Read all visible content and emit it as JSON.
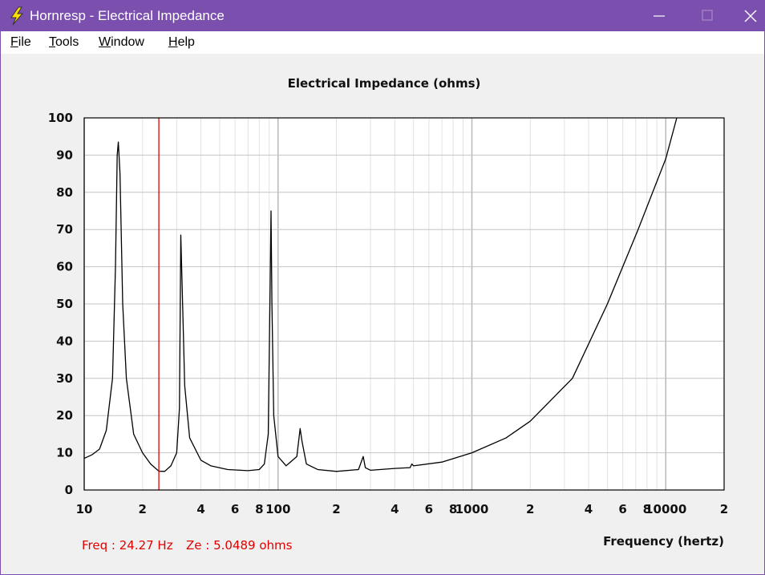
{
  "window": {
    "title": "Hornresp - Electrical Impedance"
  },
  "menu": [
    "File",
    "Tools",
    "Window",
    "Help"
  ],
  "chart_data": {
    "type": "line",
    "title": "Electrical Impedance (ohms)",
    "x_label": "Frequency (hertz)",
    "x_log": true,
    "grid": true,
    "color": "#000000",
    "xlim": [
      10,
      20000
    ],
    "ylim": [
      0,
      100
    ],
    "xticks": [
      10,
      {
        "value": 20,
        "label": "2"
      },
      {
        "value": 40,
        "label": "4"
      },
      {
        "value": 60,
        "label": "6"
      },
      {
        "value": 80,
        "label": "8"
      },
      100,
      {
        "value": 200,
        "label": "2"
      },
      {
        "value": 400,
        "label": "4"
      },
      {
        "value": 600,
        "label": "6"
      },
      {
        "value": 800,
        "label": "8"
      },
      1000,
      {
        "value": 2000,
        "label": "2"
      },
      {
        "value": 4000,
        "label": "4"
      },
      {
        "value": 6000,
        "label": "6"
      },
      {
        "value": 8000,
        "label": "8"
      },
      10000,
      {
        "value": 20000,
        "label": "2"
      }
    ],
    "yticks": [
      0,
      10,
      20,
      30,
      40,
      50,
      60,
      70,
      80,
      90,
      100
    ],
    "x": [
      10,
      11,
      12,
      13,
      14,
      14.5,
      14.8,
      15,
      15.3,
      15.8,
      16.5,
      18,
      20,
      22,
      24.27,
      26,
      28,
      30,
      31,
      31.5,
      32,
      33,
      35,
      40,
      45,
      55,
      70,
      80,
      85,
      89,
      91,
      92,
      93,
      95,
      100,
      110,
      125,
      130,
      133,
      140,
      160,
      200,
      260,
      275,
      282,
      300,
      400,
      480,
      490,
      500,
      700,
      1000,
      1500,
      2000,
      3300,
      5000,
      7200,
      10000,
      11400
    ],
    "values": [
      8.5,
      9.5,
      11,
      16,
      30,
      60,
      90,
      93.5,
      85,
      50,
      30,
      15,
      10,
      7,
      5.05,
      5,
      6.5,
      10,
      22,
      68.5,
      55,
      28,
      14,
      8,
      6.5,
      5.5,
      5.2,
      5.5,
      7,
      15,
      54,
      75,
      50,
      20,
      9,
      6.5,
      9,
      16.5,
      13,
      7,
      5.5,
      5,
      5.5,
      9,
      6,
      5.3,
      5.8,
      6,
      7,
      6.5,
      7.5,
      10,
      14,
      18.5,
      30,
      50,
      70,
      89,
      100
    ],
    "cursor": {
      "x": 24.27,
      "color": "#e00000"
    },
    "status": [
      "Freq : 24.27 Hz",
      "Ze : 5.0489 ohms"
    ]
  }
}
